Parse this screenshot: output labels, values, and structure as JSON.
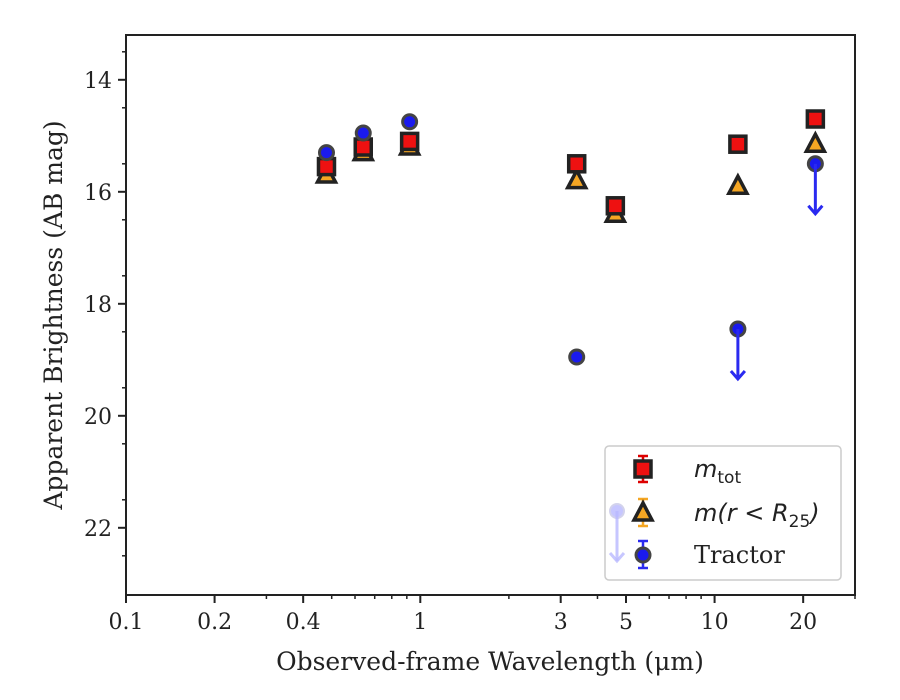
{
  "chart_data": {
    "type": "scatter",
    "title": "",
    "xlabel": "Observed-frame Wavelength (μm)",
    "ylabel": "Apparent Brightness (AB mag)",
    "xscale": "log",
    "xlim": [
      0.1,
      30
    ],
    "ylim": [
      23.2,
      13.2
    ],
    "y_inverted": true,
    "x_ticks": [
      0.1,
      0.2,
      0.4,
      1,
      3,
      5,
      10,
      20
    ],
    "x_tick_labels": [
      "0.1",
      "0.2",
      "0.4",
      "1",
      "3",
      "5",
      "10",
      "20"
    ],
    "y_ticks": [
      14,
      16,
      18,
      20,
      22
    ],
    "y_tick_labels": [
      "14",
      "16",
      "18",
      "20",
      "22"
    ],
    "legend_position": "lower-right",
    "series": [
      {
        "name": "m_tot",
        "marker": "square",
        "color": "#ee1111",
        "edge_color": "#222222",
        "error_color": "#dd0000",
        "x": [
          0.48,
          0.64,
          0.92,
          3.4,
          4.6,
          12,
          22
        ],
        "y": [
          15.55,
          15.2,
          15.1,
          15.5,
          16.25,
          15.15,
          14.7
        ],
        "upper_limit": [
          false,
          false,
          false,
          false,
          false,
          false,
          false
        ]
      },
      {
        "name": "m(r < R25)",
        "marker": "triangle",
        "color": "#f5a623",
        "edge_color": "#222222",
        "error_color": "#f5a623",
        "x": [
          0.48,
          0.64,
          0.92,
          3.4,
          4.6,
          12,
          22
        ],
        "y": [
          15.7,
          15.3,
          15.2,
          15.8,
          16.4,
          15.9,
          15.15
        ],
        "upper_limit": [
          false,
          false,
          false,
          false,
          false,
          false,
          false
        ]
      },
      {
        "name": "Tractor",
        "marker": "circle",
        "color": "#1a1aee",
        "edge_color": "#444444",
        "error_color": "#2a2af0",
        "x": [
          0.48,
          0.64,
          0.92,
          3.4,
          12,
          22
        ],
        "y": [
          15.3,
          14.95,
          14.75,
          18.95,
          18.45,
          15.5
        ],
        "upper_limit": [
          false,
          false,
          false,
          false,
          true,
          true
        ]
      }
    ]
  },
  "legend": {
    "entry1_base": "m",
    "entry1_sub": "tot",
    "entry2_pre": "m(r < R",
    "entry2_sub": "25",
    "entry2_post": ")",
    "entry3": "Tractor"
  }
}
